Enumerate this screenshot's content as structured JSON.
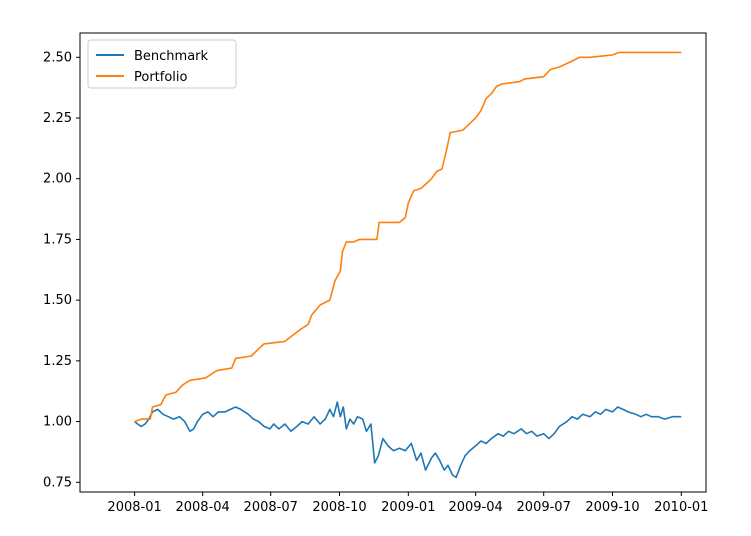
{
  "chart_data": {
    "type": "line",
    "title": "",
    "xlabel": "",
    "ylabel": "",
    "x_ticks": [
      "2008-01",
      "2008-04",
      "2008-07",
      "2008-10",
      "2009-01",
      "2009-04",
      "2009-07",
      "2009-10",
      "2010-01"
    ],
    "y_ticks": [
      "0.75",
      "1.00",
      "1.25",
      "1.50",
      "1.75",
      "2.00",
      "2.25",
      "2.50"
    ],
    "xlim": [
      "2007-10-20",
      "2010-02-03"
    ],
    "ylim": [
      0.71,
      2.6
    ],
    "grid": false,
    "legend_position": "upper-left",
    "series": [
      {
        "name": "Benchmark",
        "color": "#1f77b4",
        "points": [
          [
            "2008-01-01",
            1.0
          ],
          [
            "2008-01-05",
            0.99
          ],
          [
            "2008-01-10",
            0.98
          ],
          [
            "2008-01-15",
            0.99
          ],
          [
            "2008-01-20",
            1.01
          ],
          [
            "2008-01-25",
            1.04
          ],
          [
            "2008-02-01",
            1.05
          ],
          [
            "2008-02-08",
            1.03
          ],
          [
            "2008-02-15",
            1.02
          ],
          [
            "2008-02-22",
            1.01
          ],
          [
            "2008-03-01",
            1.02
          ],
          [
            "2008-03-08",
            1.0
          ],
          [
            "2008-03-15",
            0.96
          ],
          [
            "2008-03-20",
            0.97
          ],
          [
            "2008-03-25",
            1.0
          ],
          [
            "2008-04-01",
            1.03
          ],
          [
            "2008-04-08",
            1.04
          ],
          [
            "2008-04-15",
            1.02
          ],
          [
            "2008-04-22",
            1.04
          ],
          [
            "2008-05-01",
            1.04
          ],
          [
            "2008-05-08",
            1.05
          ],
          [
            "2008-05-15",
            1.06
          ],
          [
            "2008-05-22",
            1.05
          ],
          [
            "2008-06-01",
            1.03
          ],
          [
            "2008-06-08",
            1.01
          ],
          [
            "2008-06-15",
            1.0
          ],
          [
            "2008-06-22",
            0.98
          ],
          [
            "2008-06-30",
            0.97
          ],
          [
            "2008-07-05",
            0.99
          ],
          [
            "2008-07-12",
            0.97
          ],
          [
            "2008-07-20",
            0.99
          ],
          [
            "2008-07-28",
            0.96
          ],
          [
            "2008-08-05",
            0.98
          ],
          [
            "2008-08-12",
            1.0
          ],
          [
            "2008-08-20",
            0.99
          ],
          [
            "2008-08-28",
            1.02
          ],
          [
            "2008-09-05",
            0.99
          ],
          [
            "2008-09-12",
            1.01
          ],
          [
            "2008-09-18",
            1.05
          ],
          [
            "2008-09-23",
            1.02
          ],
          [
            "2008-09-28",
            1.08
          ],
          [
            "2008-10-02",
            1.02
          ],
          [
            "2008-10-06",
            1.06
          ],
          [
            "2008-10-10",
            0.97
          ],
          [
            "2008-10-15",
            1.01
          ],
          [
            "2008-10-20",
            0.99
          ],
          [
            "2008-10-25",
            1.02
          ],
          [
            "2008-11-01",
            1.01
          ],
          [
            "2008-11-06",
            0.96
          ],
          [
            "2008-11-12",
            0.99
          ],
          [
            "2008-11-17",
            0.83
          ],
          [
            "2008-11-22",
            0.86
          ],
          [
            "2008-11-28",
            0.93
          ],
          [
            "2008-12-05",
            0.9
          ],
          [
            "2008-12-12",
            0.88
          ],
          [
            "2008-12-20",
            0.89
          ],
          [
            "2008-12-28",
            0.88
          ],
          [
            "2009-01-05",
            0.91
          ],
          [
            "2009-01-12",
            0.84
          ],
          [
            "2009-01-18",
            0.87
          ],
          [
            "2009-01-24",
            0.8
          ],
          [
            "2009-02-01",
            0.85
          ],
          [
            "2009-02-06",
            0.87
          ],
          [
            "2009-02-12",
            0.84
          ],
          [
            "2009-02-18",
            0.8
          ],
          [
            "2009-02-23",
            0.82
          ],
          [
            "2009-03-01",
            0.78
          ],
          [
            "2009-03-06",
            0.77
          ],
          [
            "2009-03-12",
            0.82
          ],
          [
            "2009-03-18",
            0.86
          ],
          [
            "2009-03-24",
            0.88
          ],
          [
            "2009-04-01",
            0.9
          ],
          [
            "2009-04-08",
            0.92
          ],
          [
            "2009-04-15",
            0.91
          ],
          [
            "2009-04-22",
            0.93
          ],
          [
            "2009-05-01",
            0.95
          ],
          [
            "2009-05-08",
            0.94
          ],
          [
            "2009-05-15",
            0.96
          ],
          [
            "2009-05-22",
            0.95
          ],
          [
            "2009-06-01",
            0.97
          ],
          [
            "2009-06-08",
            0.95
          ],
          [
            "2009-06-15",
            0.96
          ],
          [
            "2009-06-22",
            0.94
          ],
          [
            "2009-07-01",
            0.95
          ],
          [
            "2009-07-08",
            0.93
          ],
          [
            "2009-07-15",
            0.95
          ],
          [
            "2009-07-22",
            0.98
          ],
          [
            "2009-08-01",
            1.0
          ],
          [
            "2009-08-08",
            1.02
          ],
          [
            "2009-08-15",
            1.01
          ],
          [
            "2009-08-22",
            1.03
          ],
          [
            "2009-09-01",
            1.02
          ],
          [
            "2009-09-08",
            1.04
          ],
          [
            "2009-09-15",
            1.03
          ],
          [
            "2009-09-22",
            1.05
          ],
          [
            "2009-10-01",
            1.04
          ],
          [
            "2009-10-08",
            1.06
          ],
          [
            "2009-10-15",
            1.05
          ],
          [
            "2009-10-22",
            1.04
          ],
          [
            "2009-11-01",
            1.03
          ],
          [
            "2009-11-08",
            1.02
          ],
          [
            "2009-11-15",
            1.03
          ],
          [
            "2009-11-22",
            1.02
          ],
          [
            "2009-12-01",
            1.02
          ],
          [
            "2009-12-10",
            1.01
          ],
          [
            "2009-12-20",
            1.02
          ],
          [
            "2010-01-01",
            1.02
          ]
        ]
      },
      {
        "name": "Portfolio",
        "color": "#ff7f0e",
        "points": [
          [
            "2008-01-01",
            1.0
          ],
          [
            "2008-01-10",
            1.01
          ],
          [
            "2008-01-22",
            1.01
          ],
          [
            "2008-01-25",
            1.06
          ],
          [
            "2008-02-05",
            1.07
          ],
          [
            "2008-02-12",
            1.11
          ],
          [
            "2008-02-25",
            1.12
          ],
          [
            "2008-03-05",
            1.15
          ],
          [
            "2008-03-15",
            1.17
          ],
          [
            "2008-04-05",
            1.18
          ],
          [
            "2008-04-20",
            1.21
          ],
          [
            "2008-05-10",
            1.22
          ],
          [
            "2008-05-15",
            1.26
          ],
          [
            "2008-06-05",
            1.27
          ],
          [
            "2008-06-15",
            1.3
          ],
          [
            "2008-06-22",
            1.32
          ],
          [
            "2008-07-20",
            1.33
          ],
          [
            "2008-07-28",
            1.35
          ],
          [
            "2008-08-10",
            1.38
          ],
          [
            "2008-08-20",
            1.4
          ],
          [
            "2008-08-25",
            1.44
          ],
          [
            "2008-09-05",
            1.48
          ],
          [
            "2008-09-18",
            1.5
          ],
          [
            "2008-09-25",
            1.58
          ],
          [
            "2008-10-02",
            1.62
          ],
          [
            "2008-10-05",
            1.7
          ],
          [
            "2008-10-10",
            1.74
          ],
          [
            "2008-10-20",
            1.74
          ],
          [
            "2008-10-28",
            1.75
          ],
          [
            "2008-11-20",
            1.75
          ],
          [
            "2008-11-23",
            1.82
          ],
          [
            "2008-12-20",
            1.82
          ],
          [
            "2008-12-28",
            1.84
          ],
          [
            "2009-01-01",
            1.9
          ],
          [
            "2009-01-08",
            1.95
          ],
          [
            "2009-01-18",
            1.96
          ],
          [
            "2009-01-25",
            1.98
          ],
          [
            "2009-02-01",
            2.0
          ],
          [
            "2009-02-08",
            2.03
          ],
          [
            "2009-02-15",
            2.04
          ],
          [
            "2009-02-22",
            2.13
          ],
          [
            "2009-02-26",
            2.19
          ],
          [
            "2009-03-15",
            2.2
          ],
          [
            "2009-03-25",
            2.23
          ],
          [
            "2009-04-01",
            2.25
          ],
          [
            "2009-04-08",
            2.28
          ],
          [
            "2009-04-15",
            2.33
          ],
          [
            "2009-04-22",
            2.35
          ],
          [
            "2009-04-29",
            2.38
          ],
          [
            "2009-05-06",
            2.39
          ],
          [
            "2009-05-30",
            2.4
          ],
          [
            "2009-06-05",
            2.41
          ],
          [
            "2009-07-01",
            2.42
          ],
          [
            "2009-07-10",
            2.45
          ],
          [
            "2009-07-22",
            2.46
          ],
          [
            "2009-08-05",
            2.48
          ],
          [
            "2009-08-18",
            2.5
          ],
          [
            "2009-09-01",
            2.5
          ],
          [
            "2009-10-01",
            2.51
          ],
          [
            "2009-10-10",
            2.52
          ],
          [
            "2010-01-01",
            2.52
          ]
        ]
      }
    ]
  }
}
